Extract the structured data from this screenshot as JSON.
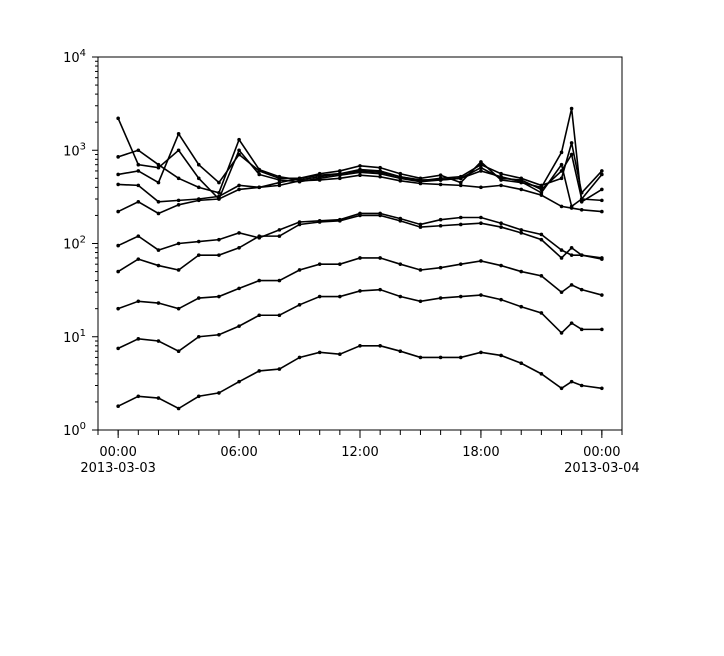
{
  "chart_data": {
    "type": "line",
    "title": "",
    "xlabel": "",
    "ylabel": "",
    "y_scale": "log",
    "ylim": [
      1,
      10000
    ],
    "xlim_hours": [
      -1,
      25
    ],
    "grid": false,
    "marker": "dot",
    "line_color": "#000000",
    "x_ticks": [
      {
        "hour": 0,
        "label": "00:00",
        "sublabel": "2013-03-03"
      },
      {
        "hour": 6,
        "label": "06:00",
        "sublabel": ""
      },
      {
        "hour": 12,
        "label": "12:00",
        "sublabel": ""
      },
      {
        "hour": 18,
        "label": "18:00",
        "sublabel": ""
      },
      {
        "hour": 24,
        "label": "00:00",
        "sublabel": "2013-03-04"
      }
    ],
    "y_ticks": [
      {
        "value": 1,
        "base": "10",
        "exp": "0"
      },
      {
        "value": 10,
        "base": "10",
        "exp": "1"
      },
      {
        "value": 100,
        "base": "10",
        "exp": "2"
      },
      {
        "value": 1000,
        "base": "10",
        "exp": "3"
      },
      {
        "value": 10000,
        "base": "10",
        "exp": "4"
      }
    ],
    "x_hours": [
      0,
      1,
      2,
      3,
      4,
      5,
      6,
      7,
      8,
      9,
      10,
      11,
      12,
      13,
      14,
      15,
      16,
      17,
      18,
      19,
      20,
      21,
      22,
      22.5,
      23,
      24
    ],
    "series": [
      {
        "values": [
          1.8,
          2.3,
          2.2,
          1.7,
          2.3,
          2.5,
          3.3,
          4.3,
          4.5,
          6,
          6.8,
          6.5,
          8,
          8,
          7,
          6,
          6,
          6,
          6.8,
          6.3,
          5.2,
          4,
          2.8,
          3.3,
          3,
          2.8
        ]
      },
      {
        "values": [
          7.5,
          9.5,
          9,
          7,
          10,
          10.5,
          13,
          17,
          17,
          22,
          27,
          27,
          31,
          32,
          27,
          24,
          26,
          27,
          28,
          25,
          21,
          18,
          11,
          14,
          12,
          12
        ]
      },
      {
        "values": [
          20,
          24,
          23,
          20,
          26,
          27,
          33,
          40,
          40,
          52,
          60,
          60,
          70,
          70,
          60,
          52,
          55,
          60,
          65,
          58,
          50,
          45,
          30,
          36,
          32,
          28
        ]
      },
      {
        "values": [
          50,
          68,
          58,
          52,
          75,
          75,
          90,
          120,
          120,
          160,
          170,
          175,
          200,
          200,
          175,
          150,
          155,
          160,
          165,
          150,
          130,
          110,
          70,
          90,
          75,
          70
        ]
      },
      {
        "values": [
          95,
          120,
          85,
          100,
          105,
          110,
          130,
          115,
          140,
          170,
          175,
          180,
          210,
          210,
          185,
          160,
          180,
          190,
          190,
          165,
          140,
          125,
          85,
          75,
          75,
          68
        ]
      },
      {
        "values": [
          220,
          280,
          210,
          260,
          290,
          300,
          380,
          400,
          420,
          470,
          480,
          500,
          540,
          520,
          470,
          440,
          430,
          420,
          400,
          420,
          380,
          330,
          250,
          240,
          230,
          220
        ]
      },
      {
        "values": [
          430,
          420,
          280,
          290,
          300,
          320,
          420,
          400,
          450,
          500,
          540,
          560,
          620,
          600,
          520,
          480,
          480,
          500,
          600,
          520,
          460,
          350,
          700,
          250,
          300,
          290
        ]
      },
      {
        "values": [
          550,
          600,
          450,
          1500,
          700,
          450,
          900,
          600,
          500,
          500,
          560,
          600,
          680,
          650,
          560,
          500,
          540,
          450,
          750,
          480,
          450,
          400,
          950,
          2800,
          280,
          380
        ]
      },
      {
        "values": [
          850,
          1000,
          700,
          500,
          400,
          350,
          1300,
          620,
          520,
          480,
          520,
          560,
          600,
          580,
          520,
          470,
          500,
          520,
          700,
          560,
          500,
          420,
          500,
          1200,
          350,
          600
        ]
      },
      {
        "values": [
          2200,
          700,
          650,
          1000,
          500,
          300,
          1000,
          550,
          480,
          460,
          500,
          540,
          580,
          560,
          500,
          460,
          480,
          500,
          650,
          500,
          480,
          380,
          600,
          900,
          300,
          550
        ]
      }
    ]
  }
}
